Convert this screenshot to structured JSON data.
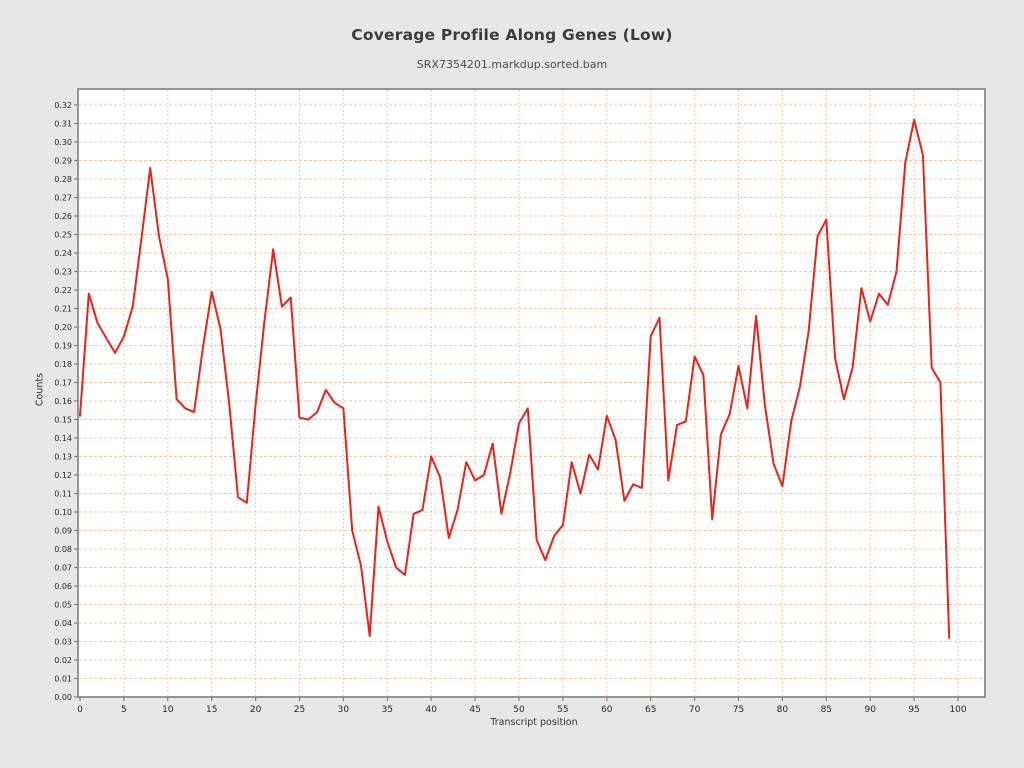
{
  "page": {
    "background": "#e7e7e7"
  },
  "header": {
    "title": "Coverage Profile Along Genes (Low)",
    "subtitle": "SRX7354201.markdup.sorted.bam"
  },
  "chart_data": {
    "type": "line",
    "title": "Coverage Profile Along Genes (Low)",
    "subtitle": "SRX7354201.markdup.sorted.bam",
    "xlabel": "Transcript position",
    "ylabel": "Counts",
    "xlim": [
      0,
      103
    ],
    "ylim": [
      0.0,
      0.32
    ],
    "grid": "dashed",
    "legend": "none",
    "colors": {
      "line": "#e8231a",
      "grid": "#f5c8a3",
      "border": "#7d7d7d",
      "tick_text": "#262626",
      "background": "#ffffff"
    },
    "x_ticks": [
      0,
      5,
      10,
      15,
      20,
      25,
      30,
      35,
      40,
      45,
      50,
      55,
      60,
      65,
      70,
      75,
      80,
      85,
      90,
      95,
      100
    ],
    "y_ticks": [
      "0.00",
      "0.01",
      "0.02",
      "0.03",
      "0.04",
      "0.05",
      "0.06",
      "0.07",
      "0.08",
      "0.09",
      "0.10",
      "0.11",
      "0.12",
      "0.13",
      "0.14",
      "0.15",
      "0.16",
      "0.17",
      "0.18",
      "0.19",
      "0.20",
      "0.21",
      "0.22",
      "0.23",
      "0.24",
      "0.25",
      "0.26",
      "0.27",
      "0.28",
      "0.29",
      "0.30",
      "0.31",
      "0.32"
    ],
    "y_tick_step": 0.01,
    "series": [
      {
        "name": "SRX7354201.markdup.sorted.bam",
        "x_start": 0,
        "x_step": 1,
        "values": [
          0.152,
          0.218,
          0.202,
          0.194,
          0.186,
          0.195,
          0.211,
          0.248,
          0.286,
          0.249,
          0.226,
          0.161,
          0.156,
          0.154,
          0.189,
          0.219,
          0.199,
          0.158,
          0.108,
          0.105,
          0.158,
          0.203,
          0.242,
          0.211,
          0.216,
          0.151,
          0.15,
          0.154,
          0.166,
          0.159,
          0.156,
          0.09,
          0.071,
          0.033,
          0.103,
          0.084,
          0.07,
          0.066,
          0.099,
          0.101,
          0.13,
          0.119,
          0.086,
          0.101,
          0.127,
          0.117,
          0.12,
          0.137,
          0.099,
          0.121,
          0.148,
          0.156,
          0.085,
          0.074,
          0.087,
          0.093,
          0.127,
          0.11,
          0.131,
          0.123,
          0.152,
          0.139,
          0.106,
          0.115,
          0.113,
          0.195,
          0.205,
          0.117,
          0.147,
          0.149,
          0.184,
          0.174,
          0.096,
          0.142,
          0.153,
          0.179,
          0.156,
          0.206,
          0.158,
          0.126,
          0.114,
          0.149,
          0.168,
          0.198,
          0.249,
          0.258,
          0.183,
          0.161,
          0.178,
          0.221,
          0.203,
          0.218,
          0.212,
          0.23,
          0.289,
          0.312,
          0.293,
          0.178,
          0.17,
          0.032
        ]
      }
    ]
  }
}
